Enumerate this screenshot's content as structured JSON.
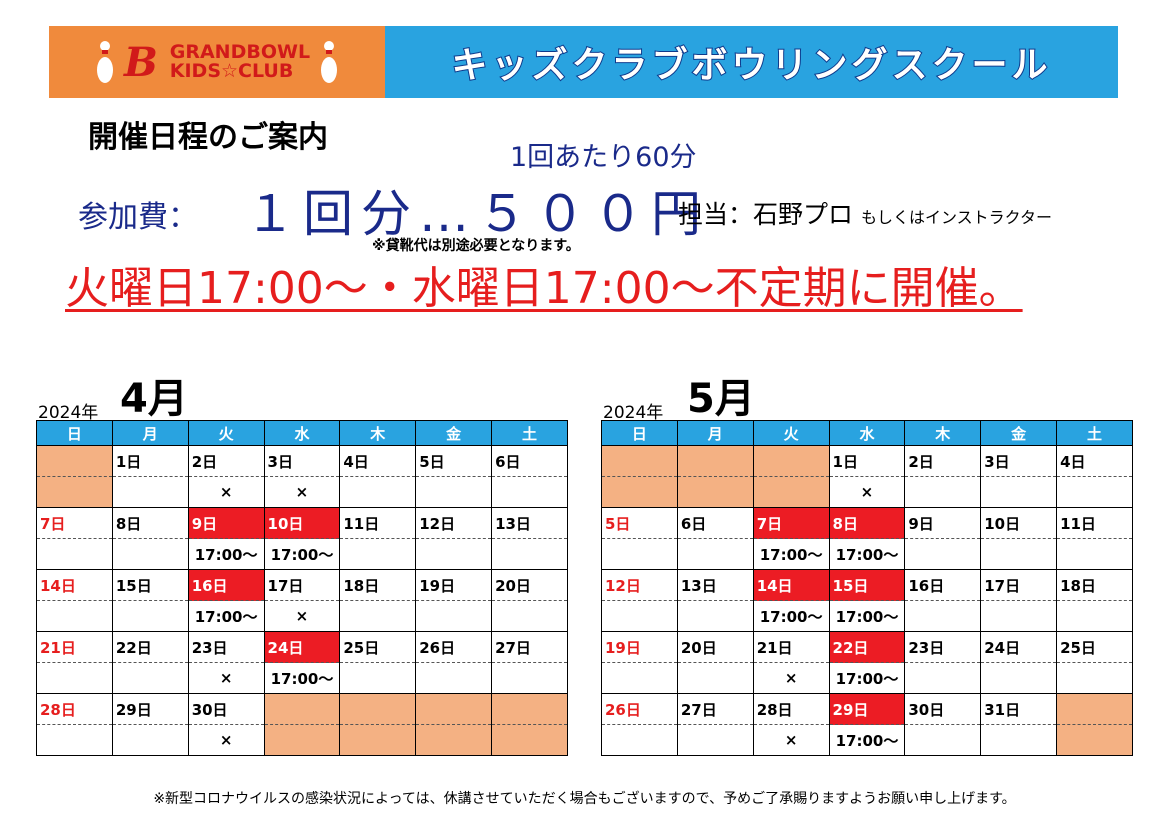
{
  "header": {
    "logo_top": "GRANDBOWL",
    "logo_bottom": "KIDS☆CLUB",
    "logo_mark": "B",
    "title": "キッズクラブボウリングスクール"
  },
  "info_title": "開催日程のご案内",
  "duration": "1回あたり60分",
  "fee_label": "参加費：",
  "fee_value": "１回分…５００円",
  "staff": "担当：石野プロ",
  "staff_note": "もしくはインストラクター",
  "shoe_note": "※貸靴代は別途必要となります。",
  "schedule": "火曜日17:00～・水曜日17:00～不定期に開催。",
  "weekdays": [
    "日",
    "月",
    "火",
    "水",
    "木",
    "金",
    "土"
  ],
  "colors": {
    "header_blue": "#29a3e0",
    "logo_orange": "#f08a3c",
    "red": "#ec1c24",
    "peach": "#f4b183",
    "navy": "#1a2a8a"
  },
  "calendars": [
    {
      "year": "2024年",
      "month": "4月",
      "weeks": [
        {
          "days": [
            "",
            "1日",
            "2日",
            "3日",
            "4日",
            "5日",
            "6日"
          ],
          "notes": [
            "",
            "",
            "×",
            "×",
            "",
            "",
            ""
          ],
          "styles": [
            "peach",
            "",
            "",
            "",
            "",
            "",
            ""
          ],
          "note_styles": [
            "peach",
            "",
            "",
            "",
            "",
            "",
            ""
          ]
        },
        {
          "days": [
            "7日",
            "8日",
            "9日",
            "10日",
            "11日",
            "12日",
            "13日"
          ],
          "notes": [
            "",
            "",
            "17:00～",
            "17:00～",
            "",
            "",
            ""
          ],
          "styles": [
            "sun",
            "",
            "red",
            "red",
            "",
            "",
            ""
          ],
          "note_styles": [
            "",
            "",
            "",
            "",
            "",
            "",
            ""
          ]
        },
        {
          "days": [
            "14日",
            "15日",
            "16日",
            "17日",
            "18日",
            "19日",
            "20日"
          ],
          "notes": [
            "",
            "",
            "17:00～",
            "×",
            "",
            "",
            ""
          ],
          "styles": [
            "sun",
            "",
            "red",
            "",
            "",
            "",
            ""
          ],
          "note_styles": [
            "",
            "",
            "",
            "",
            "",
            "",
            ""
          ]
        },
        {
          "days": [
            "21日",
            "22日",
            "23日",
            "24日",
            "25日",
            "26日",
            "27日"
          ],
          "notes": [
            "",
            "",
            "×",
            "17:00～",
            "",
            "",
            ""
          ],
          "styles": [
            "sun",
            "",
            "",
            "red",
            "",
            "",
            ""
          ],
          "note_styles": [
            "",
            "",
            "",
            "",
            "",
            "",
            ""
          ]
        },
        {
          "days": [
            "28日",
            "29日",
            "30日",
            "",
            "",
            "",
            ""
          ],
          "notes": [
            "",
            "",
            "×",
            "",
            "",
            "",
            ""
          ],
          "styles": [
            "sun",
            "",
            "",
            "peach",
            "peach",
            "peach",
            "peach"
          ],
          "note_styles": [
            "",
            "",
            "",
            "peach",
            "peach",
            "peach",
            "peach"
          ]
        }
      ]
    },
    {
      "year": "2024年",
      "month": "5月",
      "weeks": [
        {
          "days": [
            "",
            "",
            "",
            "1日",
            "2日",
            "3日",
            "4日"
          ],
          "notes": [
            "",
            "",
            "",
            "×",
            "",
            "",
            ""
          ],
          "styles": [
            "peach",
            "peach",
            "peach",
            "",
            "",
            "",
            ""
          ],
          "note_styles": [
            "peach",
            "peach",
            "peach",
            "",
            "",
            "",
            ""
          ]
        },
        {
          "days": [
            "5日",
            "6日",
            "7日",
            "8日",
            "9日",
            "10日",
            "11日"
          ],
          "notes": [
            "",
            "",
            "17:00～",
            "17:00～",
            "",
            "",
            ""
          ],
          "styles": [
            "sun",
            "",
            "red",
            "red",
            "",
            "",
            ""
          ],
          "note_styles": [
            "",
            "",
            "",
            "",
            "",
            "",
            ""
          ]
        },
        {
          "days": [
            "12日",
            "13日",
            "14日",
            "15日",
            "16日",
            "17日",
            "18日"
          ],
          "notes": [
            "",
            "",
            "17:00～",
            "17:00～",
            "",
            "",
            ""
          ],
          "styles": [
            "sun",
            "",
            "red",
            "red",
            "",
            "",
            ""
          ],
          "note_styles": [
            "",
            "",
            "",
            "",
            "",
            "",
            ""
          ]
        },
        {
          "days": [
            "19日",
            "20日",
            "21日",
            "22日",
            "23日",
            "24日",
            "25日"
          ],
          "notes": [
            "",
            "",
            "×",
            "17:00～",
            "",
            "",
            ""
          ],
          "styles": [
            "sun",
            "",
            "",
            "red",
            "",
            "",
            ""
          ],
          "note_styles": [
            "",
            "",
            "",
            "",
            "",
            "",
            ""
          ]
        },
        {
          "days": [
            "26日",
            "27日",
            "28日",
            "29日",
            "30日",
            "31日",
            ""
          ],
          "notes": [
            "",
            "",
            "×",
            "17:00～",
            "",
            "",
            ""
          ],
          "styles": [
            "sun",
            "",
            "",
            "red",
            "",
            "",
            "peach"
          ],
          "note_styles": [
            "",
            "",
            "",
            "",
            "",
            "",
            "peach"
          ]
        }
      ]
    }
  ],
  "footer": "※新型コロナウイルスの感染状況によっては、休講させていただく場合もございますので、予めご了承賜りますようお願い申し上げます。"
}
